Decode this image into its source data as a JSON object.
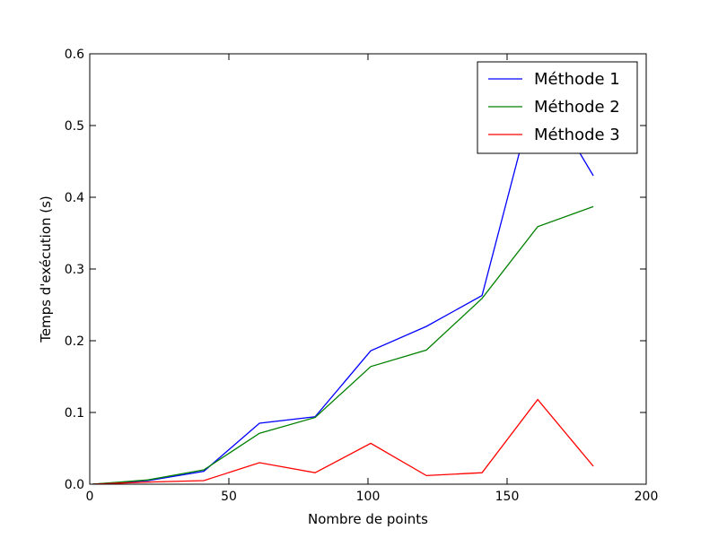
{
  "chart_data": {
    "type": "line",
    "title": "",
    "xlabel": "Nombre de points",
    "ylabel": "Temps d'exécution (s)",
    "xlim": [
      0,
      200
    ],
    "ylim": [
      0,
      0.6
    ],
    "xticks": [
      0,
      50,
      100,
      150,
      200
    ],
    "xtick_labels": [
      "0",
      "50",
      "100",
      "150",
      "200"
    ],
    "yticks": [
      0.0,
      0.1,
      0.2,
      0.3,
      0.4,
      0.5,
      0.6
    ],
    "ytick_labels": [
      "0.0",
      "0.1",
      "0.2",
      "0.3",
      "0.4",
      "0.5",
      "0.6"
    ],
    "grid": false,
    "legend_position": "top-right",
    "x": [
      1,
      21,
      41,
      61,
      81,
      101,
      121,
      141,
      161,
      181
    ],
    "series": [
      {
        "name": "Méthode 1",
        "color": "#0000ff",
        "values": [
          0.0,
          0.005,
          0.018,
          0.085,
          0.094,
          0.186,
          0.22,
          0.263,
          0.56,
          0.43
        ]
      },
      {
        "name": "Méthode 2",
        "color": "#008000",
        "values": [
          0.0,
          0.006,
          0.02,
          0.071,
          0.093,
          0.164,
          0.187,
          0.259,
          0.359,
          0.387
        ]
      },
      {
        "name": "Méthode 3",
        "color": "#ff0000",
        "values": [
          0.0,
          0.003,
          0.005,
          0.03,
          0.016,
          0.057,
          0.012,
          0.016,
          0.118,
          0.025
        ]
      }
    ]
  }
}
